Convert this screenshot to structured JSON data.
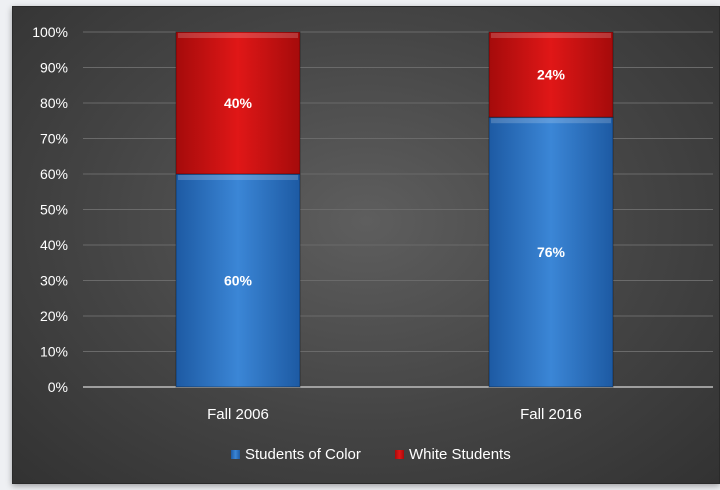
{
  "chart_data": {
    "type": "bar",
    "stacked": true,
    "percent": true,
    "categories": [
      "Fall 2006",
      "Fall 2016"
    ],
    "series": [
      {
        "name": "Students of Color",
        "values": [
          60,
          76
        ],
        "color": "#2e75c6",
        "labels": [
          "60%",
          "76%"
        ]
      },
      {
        "name": "White Students",
        "values": [
          40,
          24
        ],
        "color": "#d40f0f",
        "labels": [
          "40%",
          "24%"
        ]
      }
    ],
    "yticks": [
      "0%",
      "10%",
      "20%",
      "30%",
      "40%",
      "50%",
      "60%",
      "70%",
      "80%",
      "90%",
      "100%"
    ],
    "ylim": [
      0,
      100
    ],
    "title": "",
    "xlabel": "",
    "ylabel": "",
    "grid": true,
    "legend_position": "bottom",
    "background": "#474747",
    "text_color": "#ffffff"
  }
}
